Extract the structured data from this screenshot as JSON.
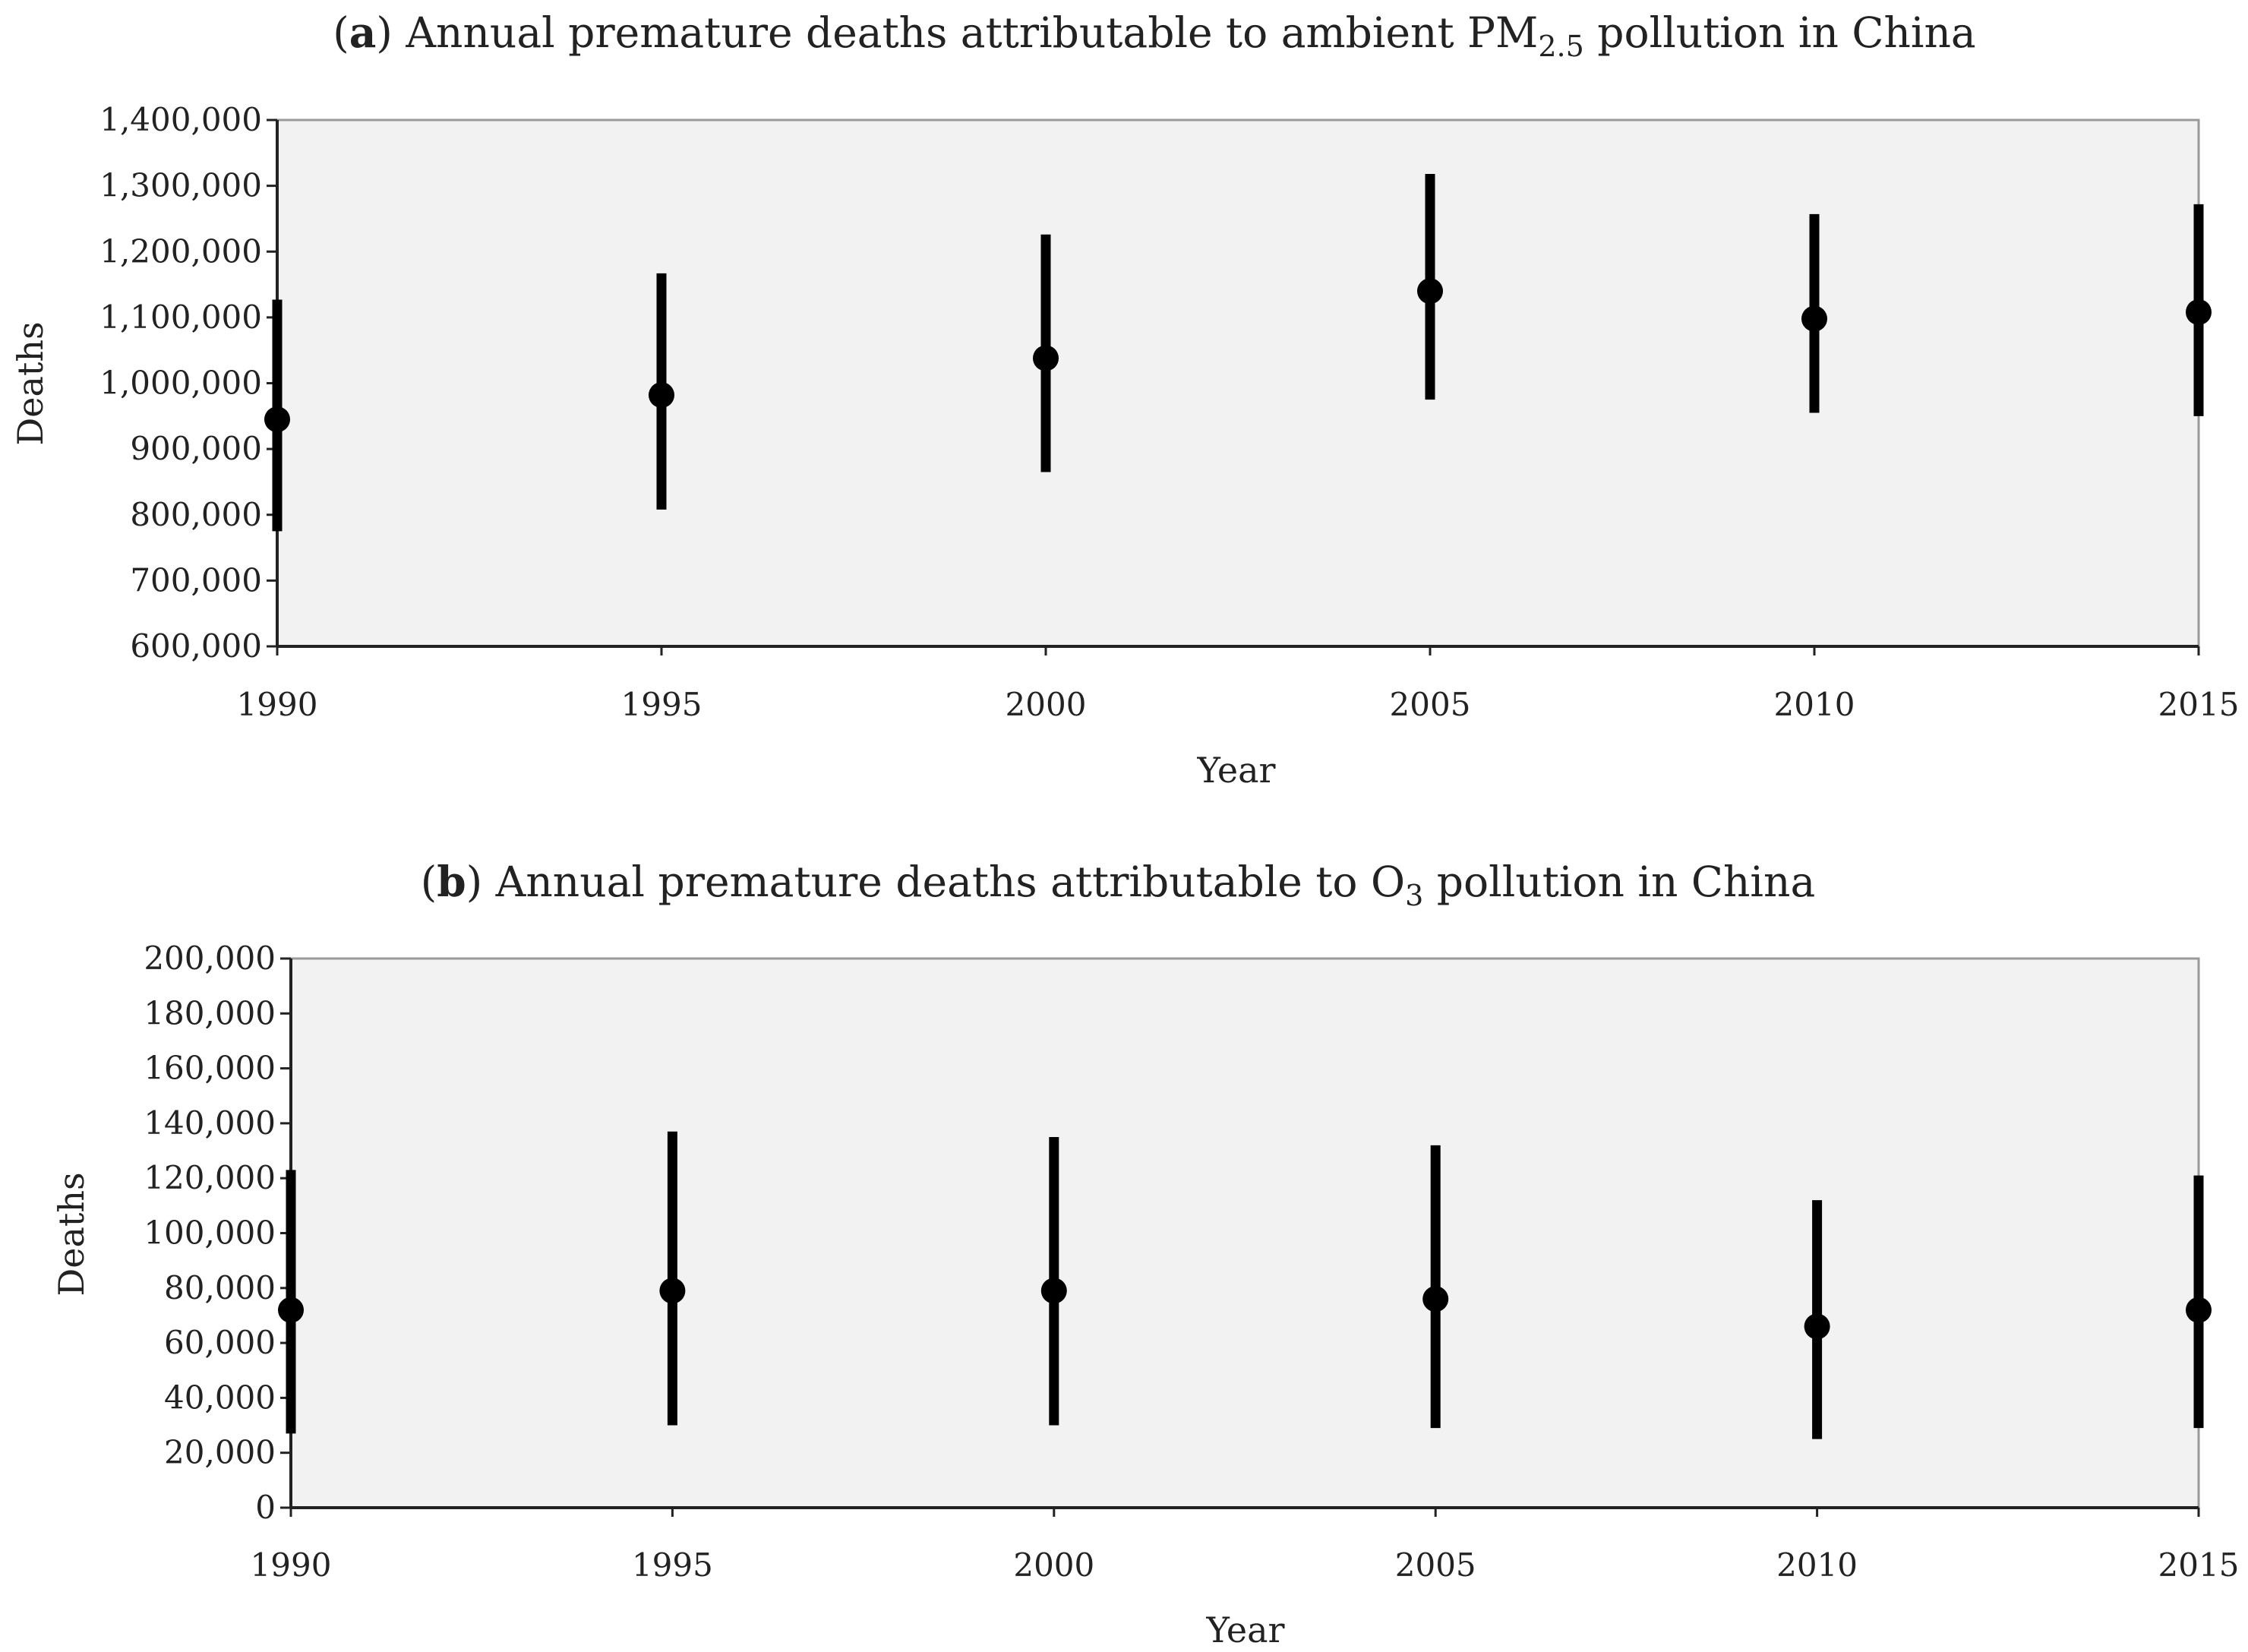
{
  "chart_data": [
    {
      "type": "errorbar",
      "panel": "a",
      "title": {
        "prefix": "(",
        "letter": "a",
        "text": ") Annual premature deaths attributable to ambient PM",
        "subscript": "2.5",
        "suffix": " pollution in China"
      },
      "xlabel": "Year",
      "ylabel": "Deaths",
      "categories": [
        "1990",
        "1995",
        "2000",
        "2005",
        "2010",
        "2015"
      ],
      "values": [
        945000,
        982000,
        1038000,
        1140000,
        1098000,
        1108000
      ],
      "lower": [
        775000,
        808000,
        865000,
        975000,
        955000,
        950000
      ],
      "upper": [
        1127000,
        1167000,
        1226000,
        1318000,
        1257000,
        1272000
      ],
      "ylim": [
        600000,
        1400000
      ],
      "yticks": [
        600000,
        700000,
        800000,
        900000,
        1000000,
        1100000,
        1200000,
        1300000,
        1400000
      ],
      "ytick_labels": [
        "600,000",
        "700,000",
        "800,000",
        "900,000",
        "1,000,000",
        "1,100,000",
        "1,200,000",
        "1,300,000",
        "1,400,000"
      ],
      "background": "#f2f2f2",
      "color": "#000000"
    },
    {
      "type": "errorbar",
      "panel": "b",
      "title": {
        "prefix": "(",
        "letter": "b",
        "text": ") Annual premature deaths attributable to O",
        "subscript": "3",
        "suffix": " pollution in China"
      },
      "xlabel": "Year",
      "ylabel": "Deaths",
      "categories": [
        "1990",
        "1995",
        "2000",
        "2005",
        "2010",
        "2015"
      ],
      "values": [
        72000,
        79000,
        79000,
        76000,
        66000,
        72000
      ],
      "lower": [
        27000,
        30000,
        30000,
        29000,
        25000,
        29000
      ],
      "upper": [
        123000,
        137000,
        135000,
        132000,
        112000,
        121000
      ],
      "ylim": [
        0,
        200000
      ],
      "yticks": [
        0,
        20000,
        40000,
        60000,
        80000,
        100000,
        120000,
        140000,
        160000,
        180000,
        200000
      ],
      "ytick_labels": [
        "0",
        "20,000",
        "40,000",
        "60,000",
        "80,000",
        "100,000",
        "120,000",
        "140,000",
        "160,000",
        "180,000",
        "200,000"
      ],
      "background": "#f2f2f2",
      "color": "#000000"
    }
  ]
}
